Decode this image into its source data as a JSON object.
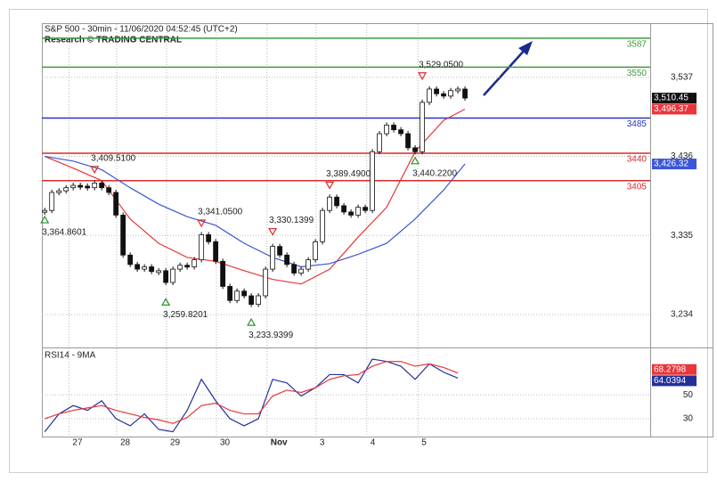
{
  "header": {
    "title": "S&P 500 - 30min - 11/06/2020 04:52:45 (UTC+2)",
    "subtitle": "Research © TRADING CENTRAL"
  },
  "chart_data": [
    {
      "type": "candlestick",
      "close": [
        3367,
        3390,
        3392,
        3396,
        3399,
        3398,
        3396,
        3402,
        3396,
        3390,
        3361,
        3310,
        3298,
        3292,
        3295,
        3289,
        3290,
        3275,
        3292,
        3297,
        3295,
        3304,
        3336,
        3327,
        3302,
        3270,
        3252,
        3264,
        3258,
        3247,
        3258,
        3292,
        3321,
        3310,
        3298,
        3287,
        3292,
        3304,
        3327,
        3367,
        3384,
        3373,
        3365,
        3361,
        3371,
        3367,
        3442,
        3465,
        3476,
        3470,
        3465,
        3447,
        3442,
        3505,
        3522,
        3516,
        3513,
        3520,
        3522,
        3510.45
      ],
      "close_last_label": "3,510.45",
      "ma": [
        {
          "color": "#e8363a",
          "x": [
            0,
            4,
            8,
            12,
            16,
            20,
            24,
            28,
            32,
            36,
            40,
            44,
            48,
            52,
            56,
            59
          ],
          "values": [
            3436,
            3421,
            3405,
            3356,
            3325,
            3307,
            3302,
            3290,
            3279,
            3273,
            3292,
            3333,
            3371,
            3442,
            3482,
            3496.37
          ],
          "last_label": "3,496.37"
        },
        {
          "color": "#3a56d8",
          "x": [
            0,
            4,
            8,
            12,
            16,
            20,
            24,
            28,
            32,
            36,
            40,
            44,
            48,
            52,
            56,
            59
          ],
          "values": [
            3436,
            3430,
            3419,
            3396,
            3375,
            3359,
            3348,
            3325,
            3307,
            3295,
            3299,
            3311,
            3325,
            3356,
            3393,
            3426.32
          ],
          "last_label": "3,426.32"
        }
      ],
      "levels": [
        {
          "value": 3587,
          "color": "#3f9a3f"
        },
        {
          "value": 3550,
          "color": "#3f9a3f"
        },
        {
          "value": 3485,
          "color": "#2633c4"
        },
        {
          "value": 3440,
          "color": "#d92b2b"
        },
        {
          "value": 3405,
          "color": "#d92b2b"
        }
      ],
      "annotations": [
        {
          "label": "3,364.8601",
          "value": 3364.8601,
          "x": 0,
          "marker": "up"
        },
        {
          "label": "3,409.5100",
          "value": 3409.51,
          "x": 7,
          "marker": "down"
        },
        {
          "label": "3,259.8201",
          "value": 3259.8201,
          "x": 17,
          "marker": "up"
        },
        {
          "label": "3,341.0500",
          "value": 3341.05,
          "x": 22,
          "marker": "down"
        },
        {
          "label": "3,233.9399",
          "value": 3233.9399,
          "x": 29,
          "marker": "up"
        },
        {
          "label": "3,330.1399",
          "value": 3330.1399,
          "x": 32,
          "marker": "down"
        },
        {
          "label": "3,389.4900",
          "value": 3389.49,
          "x": 40,
          "marker": "down"
        },
        {
          "label": "3,440.2200",
          "value": 3440.22,
          "x": 52,
          "marker": "up"
        },
        {
          "label": "3,529.0500",
          "value": 3529.05,
          "x": 53,
          "marker": "down"
        }
      ],
      "ylim": [
        3192,
        3605
      ],
      "yticks": [
        {
          "value": 3234,
          "label": "3,234"
        },
        {
          "value": 3335,
          "label": "3,335"
        },
        {
          "value": 3436,
          "label": "3,436"
        },
        {
          "value": 3537,
          "label": "3,537"
        }
      ],
      "xlim": [
        -0.4,
        85
      ],
      "xticks": [
        {
          "value": 3.4,
          "label": "27"
        },
        {
          "value": 10.1,
          "label": "28"
        },
        {
          "value": 17.1,
          "label": "29"
        },
        {
          "value": 24.1,
          "label": "30"
        },
        {
          "value": 31.2,
          "label": "Nov"
        },
        {
          "value": 38.1,
          "label": "3"
        },
        {
          "value": 45.2,
          "label": "4"
        },
        {
          "value": 52.4,
          "label": "5"
        }
      ],
      "grid": true
    },
    {
      "type": "line",
      "title": "RSI14 - 9MA",
      "series": [
        {
          "color": "#23309a",
          "x": [
            0,
            2,
            4,
            6,
            8,
            10,
            12,
            14,
            16,
            18,
            20,
            22,
            24,
            26,
            28,
            30,
            32,
            34,
            36,
            38,
            40,
            42,
            44,
            46,
            48,
            50,
            52,
            54,
            56,
            58
          ],
          "values": [
            19,
            34,
            41,
            37,
            45,
            30,
            24,
            34,
            21,
            19,
            37,
            63,
            45,
            30,
            24,
            30,
            63,
            60,
            49,
            56,
            67,
            67,
            60,
            80,
            78,
            74,
            63,
            76,
            69,
            64.0394
          ],
          "last_label": "64.0394"
        },
        {
          "color": "#e8363a",
          "x": [
            0,
            2,
            4,
            6,
            8,
            10,
            12,
            14,
            16,
            18,
            20,
            22,
            24,
            26,
            28,
            30,
            32,
            34,
            36,
            38,
            40,
            42,
            44,
            46,
            48,
            50,
            52,
            54,
            56,
            58
          ],
          "values": [
            30,
            34,
            37,
            39,
            41,
            37,
            34,
            31,
            29,
            26,
            31,
            41,
            43,
            37,
            34,
            34,
            49,
            54,
            52,
            56,
            63,
            66,
            67,
            74,
            78,
            78,
            74,
            76,
            73,
            68.2798
          ],
          "last_label": "68.2798"
        }
      ],
      "ylim": [
        15,
        89
      ],
      "yticks": [
        30,
        50
      ],
      "xlim": [
        -0.4,
        85
      ],
      "grid": true
    }
  ]
}
